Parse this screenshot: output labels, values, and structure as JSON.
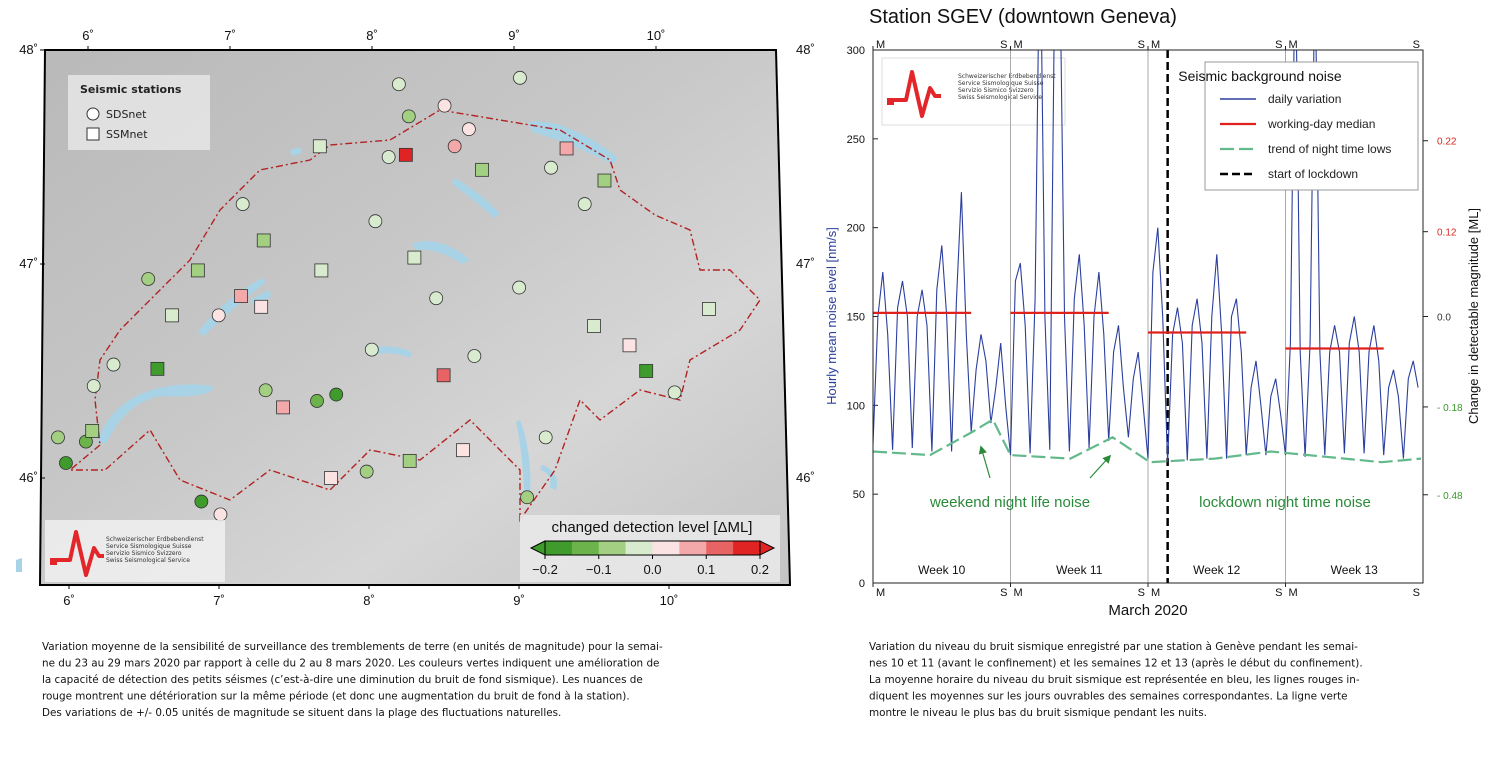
{
  "map": {
    "lon_ticks": [
      {
        "value": 6,
        "label": "6˚"
      },
      {
        "value": 7,
        "label": "7˚"
      },
      {
        "value": 8,
        "label": "8˚"
      },
      {
        "value": 9,
        "label": "9˚"
      },
      {
        "value": 10,
        "label": "10˚"
      }
    ],
    "lat_ticks": [
      {
        "value": 46,
        "label": "46˚"
      },
      {
        "value": 47,
        "label": "47˚"
      },
      {
        "value": 48,
        "label": "48˚"
      }
    ],
    "legend": {
      "title": "Seismic stations",
      "circle": "SDSnet",
      "square": "SSMnet"
    },
    "colorbar": {
      "label": "changed detection level [ΔML]",
      "lim": [
        -0.2,
        0.2
      ],
      "ticks": [
        {
          "value": -0.2,
          "label": "−0.2"
        },
        {
          "value": -0.1,
          "label": "−0.1"
        },
        {
          "value": 0,
          "label": "0.0"
        },
        0.1,
        0.2
      ],
      "colors": [
        "#3f9b2c",
        "#6cb34b",
        "#a3cf83",
        "#d9ebcf",
        "#fbe3e3",
        "#f3a9a9",
        "#e86464",
        "#e02424"
      ]
    },
    "stations": [
      {
        "net": "SDSnet",
        "lon": 8.19,
        "lat": 47.84,
        "value": -0.02
      },
      {
        "net": "SDSnet",
        "lon": 9.04,
        "lat": 47.87,
        "value": -0.02
      },
      {
        "net": "SDSnet",
        "lon": 8.26,
        "lat": 47.69,
        "value": -0.08
      },
      {
        "net": "SSMnet",
        "lon": 8.24,
        "lat": 47.51,
        "value": 0.18
      },
      {
        "net": "SDSnet",
        "lon": 8.51,
        "lat": 47.74,
        "value": 0.03
      },
      {
        "net": "SDSnet",
        "lon": 8.68,
        "lat": 47.63,
        "value": 0.03
      },
      {
        "net": "SDSnet",
        "lon": 8.58,
        "lat": 47.55,
        "value": 0.07
      },
      {
        "net": "SSMnet",
        "lon": 8.77,
        "lat": 47.44,
        "value": -0.07
      },
      {
        "net": "SSMnet",
        "lon": 9.36,
        "lat": 47.54,
        "value": 0.07
      },
      {
        "net": "SSMnet",
        "lon": 9.62,
        "lat": 47.39,
        "value": -0.08
      },
      {
        "net": "SDSnet",
        "lon": 9.48,
        "lat": 47.28,
        "value": -0.02
      },
      {
        "net": "SDSnet",
        "lon": 9.25,
        "lat": 47.45,
        "value": -0.02
      },
      {
        "net": "SSMnet",
        "lon": 7.64,
        "lat": 47.55,
        "value": -0.02
      },
      {
        "net": "SDSnet",
        "lon": 8.12,
        "lat": 47.5,
        "value": -0.02
      },
      {
        "net": "SDSnet",
        "lon": 8.03,
        "lat": 47.2,
        "value": -0.02
      },
      {
        "net": "SDSnet",
        "lon": 7.11,
        "lat": 47.28,
        "value": -0.02
      },
      {
        "net": "SSMnet",
        "lon": 7.26,
        "lat": 47.11,
        "value": -0.07
      },
      {
        "net": "SDSnet",
        "lon": 6.47,
        "lat": 46.93,
        "value": -0.08
      },
      {
        "net": "SSMnet",
        "lon": 6.81,
        "lat": 46.97,
        "value": -0.07
      },
      {
        "net": "SSMnet",
        "lon": 7.11,
        "lat": 46.85,
        "value": 0.07
      },
      {
        "net": "SSMnet",
        "lon": 7.25,
        "lat": 46.8,
        "value": 0.03
      },
      {
        "net": "SSMnet",
        "lon": 6.64,
        "lat": 46.76,
        "value": -0.02
      },
      {
        "net": "SDSnet",
        "lon": 6.96,
        "lat": 46.76,
        "value": 0.03
      },
      {
        "net": "SSMnet",
        "lon": 6.55,
        "lat": 46.51,
        "value": -0.17
      },
      {
        "net": "SDSnet",
        "lon": 6.25,
        "lat": 46.53,
        "value": -0.02
      },
      {
        "net": "SDSnet",
        "lon": 6.12,
        "lat": 46.43,
        "value": -0.02
      },
      {
        "net": "SDSnet",
        "lon": 5.89,
        "lat": 46.19,
        "value": -0.08
      },
      {
        "net": "SDSnet",
        "lon": 5.95,
        "lat": 46.07,
        "value": -0.17
      },
      {
        "net": "SDSnet",
        "lon": 6.08,
        "lat": 46.17,
        "value": -0.12
      },
      {
        "net": "SSMnet",
        "lon": 6.12,
        "lat": 46.22,
        "value": -0.07
      },
      {
        "net": "SDSnet",
        "lon": 6.87,
        "lat": 45.89,
        "value": -0.18
      },
      {
        "net": "SDSnet",
        "lon": 7.0,
        "lat": 45.83,
        "value": 0.03
      },
      {
        "net": "SDSnet",
        "lon": 7.29,
        "lat": 46.41,
        "value": -0.08
      },
      {
        "net": "SDSnet",
        "lon": 7.77,
        "lat": 46.39,
        "value": -0.17
      },
      {
        "net": "SDSnet",
        "lon": 7.64,
        "lat": 46.36,
        "value": -0.12
      },
      {
        "net": "SSMnet",
        "lon": 7.41,
        "lat": 46.33,
        "value": 0.07
      },
      {
        "net": "SSMnet",
        "lon": 8.5,
        "lat": 46.48,
        "value": 0.12
      },
      {
        "net": "SDSnet",
        "lon": 8.71,
        "lat": 46.57,
        "value": -0.02
      },
      {
        "net": "SSMnet",
        "lon": 9.88,
        "lat": 46.5,
        "value": -0.17
      },
      {
        "net": "SDSnet",
        "lon": 10.07,
        "lat": 46.4,
        "value": -0.02
      },
      {
        "net": "SDSnet",
        "lon": 9.19,
        "lat": 46.19,
        "value": -0.02
      },
      {
        "net": "SSMnet",
        "lon": 8.63,
        "lat": 46.13,
        "value": 0.03
      },
      {
        "net": "SDSnet",
        "lon": 9.06,
        "lat": 45.91,
        "value": -0.08
      },
      {
        "net": "SDSnet",
        "lon": 9.02,
        "lat": 46.89,
        "value": -0.02
      },
      {
        "net": "SSMnet",
        "lon": 9.53,
        "lat": 46.71,
        "value": -0.02
      },
      {
        "net": "SSMnet",
        "lon": 10.32,
        "lat": 46.79,
        "value": -0.02
      },
      {
        "net": "SSMnet",
        "lon": 9.77,
        "lat": 46.62,
        "value": 0.03
      },
      {
        "net": "SSMnet",
        "lon": 8.3,
        "lat": 47.03,
        "value": -0.02
      },
      {
        "net": "SDSnet",
        "lon": 8.45,
        "lat": 46.84,
        "value": -0.02
      },
      {
        "net": "SDSnet",
        "lon": 8.01,
        "lat": 46.6,
        "value": -0.02
      },
      {
        "net": "SSMnet",
        "lon": 7.66,
        "lat": 46.97,
        "value": -0.02
      },
      {
        "net": "SSMnet",
        "lon": 8.27,
        "lat": 46.08,
        "value": -0.07
      },
      {
        "net": "SSMnet",
        "lon": 7.74,
        "lat": 46.0,
        "value": 0.03
      },
      {
        "net": "SDSnet",
        "lon": 7.98,
        "lat": 46.03,
        "value": -0.08
      }
    ]
  },
  "logo": [
    "Schweizerischer Erdbebendienst",
    "Service Sismologique Suisse",
    "Servizio Sismico Svizzero",
    "Swiss Seismological Service"
  ],
  "chart_data": {
    "type": "line",
    "title": "Station SGEV (downtown Geneva)",
    "xlabel": "March 2020",
    "ylabel": "Hourly mean noise level [nm/s]",
    "y2label": "Change in detectable magnitude [ML]",
    "xlim": [
      2,
      30
    ],
    "ylim": [
      0,
      300
    ],
    "yticks": [
      0,
      50,
      100,
      150,
      200,
      250,
      300
    ],
    "y2ticks": [
      0.22,
      0.12,
      {
        "value": 0,
        "label": "0.0"
      },
      {
        "value": -0.18,
        "label": "- 0.18"
      },
      {
        "value": -0.48,
        "label": "- 0.48"
      }
    ],
    "y2_zero_level": 150,
    "y2_positive_color": "#d42a1e",
    "y2_negative_color": "#3a9a2a",
    "legend_title": "Seismic background noise",
    "legend": "upper right",
    "week_start_label": "M",
    "week_end_label": "S",
    "weeks": [
      {
        "label": "Week 10",
        "start": 2,
        "end": 9
      },
      {
        "label": "Week 11",
        "start": 9,
        "end": 16
      },
      {
        "label": "Week 12",
        "start": 16,
        "end": 23
      },
      {
        "label": "Week 13",
        "start": 23,
        "end": 30
      }
    ],
    "series": [
      {
        "name": "daily variation",
        "color": "#2b3f9e",
        "x": [
          2,
          2.25,
          2.5,
          2.75,
          3,
          3.25,
          3.5,
          3.75,
          4,
          4.25,
          4.5,
          4.75,
          5,
          5.25,
          5.5,
          5.75,
          6,
          6.25,
          6.5,
          6.75,
          7,
          7.25,
          7.5,
          7.75,
          8,
          8.25,
          8.5,
          8.75,
          9,
          9.25,
          9.5,
          9.75,
          10,
          10.25,
          10.5,
          10.75,
          11,
          11.25,
          11.5,
          11.75,
          12,
          12.25,
          12.5,
          12.75,
          13,
          13.25,
          13.5,
          13.75,
          14,
          14.25,
          14.5,
          14.75,
          15,
          15.25,
          15.5,
          15.75,
          16,
          16.25,
          16.5,
          16.75,
          17,
          17.25,
          17.5,
          17.75,
          18,
          18.25,
          18.5,
          18.75,
          19,
          19.25,
          19.5,
          19.75,
          20,
          20.25,
          20.5,
          20.75,
          21,
          21.25,
          21.5,
          21.75,
          22,
          22.25,
          22.5,
          22.75,
          23,
          23.25,
          23.5,
          23.75,
          24,
          24.25,
          24.5,
          24.75,
          25,
          25.25,
          25.5,
          25.75,
          26,
          26.25,
          26.5,
          26.75,
          27,
          27.25,
          27.5,
          27.75,
          28,
          28.25,
          28.5,
          28.75,
          29,
          29.25,
          29.5,
          29.75
        ],
        "values": [
          78,
          150,
          175,
          140,
          75,
          155,
          170,
          150,
          76,
          150,
          165,
          145,
          74,
          165,
          190,
          150,
          74,
          160,
          220,
          140,
          85,
          120,
          140,
          125,
          90,
          110,
          135,
          100,
          72,
          170,
          180,
          145,
          73,
          160,
          380,
          150,
          75,
          340,
          360,
          150,
          74,
          160,
          185,
          145,
          76,
          150,
          175,
          140,
          80,
          130,
          145,
          110,
          82,
          115,
          130,
          100,
          70,
          175,
          200,
          150,
          68,
          140,
          155,
          135,
          69,
          145,
          160,
          135,
          70,
          150,
          185,
          140,
          70,
          150,
          160,
          130,
          72,
          110,
          125,
          100,
          72,
          105,
          115,
          95,
          72,
          135,
          360,
          130,
          71,
          135,
          350,
          130,
          72,
          130,
          145,
          130,
          73,
          135,
          150,
          130,
          73,
          130,
          145,
          125,
          72,
          110,
          120,
          105,
          70,
          115,
          125,
          110
        ]
      },
      {
        "name": "working-day median",
        "color": "#e0201c",
        "x": [
          2,
          7,
          8,
          9,
          14,
          15,
          16,
          21,
          22,
          23,
          28
        ],
        "values": [
          152,
          152,
          null,
          152,
          152,
          null,
          141,
          141,
          null,
          132,
          132
        ]
      },
      {
        "name": "trend of night time lows",
        "color": "#63b98c",
        "dash": true,
        "x": [
          2,
          4.9,
          7.05,
          8.1,
          9,
          12.05,
          14.2,
          16.1,
          19.4,
          22.25,
          27.9,
          29.9
        ],
        "values": [
          74,
          72,
          85,
          92,
          72,
          70,
          82,
          68,
          70,
          74,
          68,
          70
        ]
      }
    ],
    "lockdown": {
      "name": "start of lockdown",
      "x": 17,
      "color": "#000000"
    },
    "annotations": [
      "weekend night life noise",
      "lockdown night time noise"
    ]
  },
  "captions": {
    "left": [
      "Variation moyenne de la sensibilité de surveillance des tremblements de terre (en unités de magnitude) pour la semai-",
      "ne du 23 au 29 mars 2020 par rapport à celle du 2 au 8 mars 2020. Les couleurs vertes indiquent une amélioration de",
      "la capacité de détection des petits séismes (c’est-à-dire une diminution du bruit de fond sismique). Les nuances de",
      "rouge montrent une détérioration sur la même période (et donc une augmentation du bruit de fond à la station).",
      "Des variations de +/- 0.05 unités de magnitude se situent dans la plage des fluctuations naturelles."
    ],
    "right": [
      "Variation du niveau du bruit sismique enregistré par une station à Genève pendant les semai-",
      "nes 10 et 11 (avant le confinement) et les semaines 12 et 13 (après le début du confinement).",
      "La moyenne horaire du niveau du bruit sismique est représentée en bleu, les lignes rouges in-",
      "diquent les moyennes sur les jours ouvrables des semaines correspondantes. La ligne verte",
      "montre le niveau le plus bas du bruit sismique pendant les nuits."
    ]
  }
}
